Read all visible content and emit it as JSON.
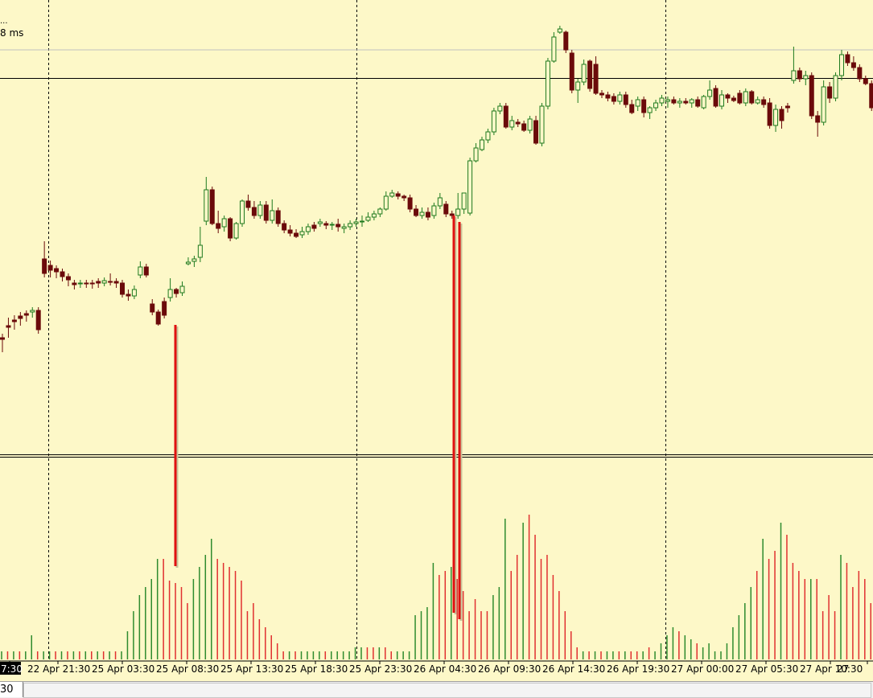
{
  "status": {
    "dots": "...",
    "latency": "8 ms"
  },
  "bottom_bar": {
    "field_value": "30"
  },
  "colors": {
    "background": "#fdf8c8",
    "bull_body": "#fdf8c8",
    "bull_outline": "#1e7a1e",
    "bear_body": "#6b0a0a",
    "bear_outline": "#6b0a0a",
    "volume_up": "#2e8b2e",
    "volume_down": "#e03030",
    "highlight_line": "#e01010",
    "grid": "#000000",
    "horizontal_line": "#000000"
  },
  "chart_data": {
    "type": "candlestick",
    "x_tick_labels": [
      "7:30",
      "22 Apr 21:30",
      "25 Apr 03:30",
      "25 Apr 08:30",
      "25 Apr 13:30",
      "25 Apr 18:30",
      "25 Apr 23:30",
      "26 Apr 04:30",
      "26 Apr 09:30",
      "26 Apr 14:30",
      "26 Apr 19:30",
      "27 Apr 00:00",
      "27 Apr 05:30",
      "27 Apr 10:30",
      "27"
    ],
    "highlighted_tick": "7:30",
    "grid": true,
    "vertical_grid_after_ticks": [
      1,
      6,
      11
    ],
    "price_series": [
      [
        420,
        422,
        438,
        415
      ],
      [
        405,
        407,
        420,
        395
      ],
      [
        398,
        400,
        410,
        392
      ],
      [
        393,
        396,
        405,
        388
      ],
      [
        390,
        392,
        400,
        386
      ],
      [
        388,
        386,
        395,
        382
      ],
      [
        386,
        410,
        415,
        382
      ],
      [
        322,
        340,
        345,
        300
      ],
      [
        330,
        336,
        345,
        324
      ],
      [
        334,
        338,
        346,
        330
      ],
      [
        338,
        344,
        350,
        334
      ],
      [
        344,
        348,
        356,
        340
      ],
      [
        352,
        354,
        360,
        348
      ],
      [
        353,
        352,
        358,
        348
      ],
      [
        352,
        353,
        358,
        348
      ],
      [
        352,
        353,
        359,
        348
      ],
      [
        350,
        352,
        358,
        346
      ],
      [
        352,
        349,
        356,
        345
      ],
      [
        350,
        350,
        355,
        340
      ],
      [
        350,
        352,
        358,
        346
      ],
      [
        352,
        366,
        370,
        348
      ],
      [
        366,
        368,
        374,
        360
      ],
      [
        368,
        360,
        372,
        355
      ],
      [
        342,
        332,
        346,
        325
      ],
      [
        332,
        342,
        345,
        328
      ],
      [
        378,
        388,
        392,
        372
      ],
      [
        388,
        403,
        405,
        385
      ],
      [
        375,
        392,
        396,
        370
      ],
      [
        370,
        360,
        375,
        346
      ],
      [
        360,
        365,
        370,
        358
      ],
      [
        364,
        356,
        368,
        350
      ],
      [
        328,
        326,
        330,
        320
      ],
      [
        325,
        322,
        332,
        318
      ],
      [
        320,
        305,
        326,
        282
      ],
      [
        275,
        236,
        280,
        220
      ],
      [
        236,
        278,
        280,
        232
      ],
      [
        278,
        284,
        290,
        262
      ],
      [
        282,
        272,
        288,
        268
      ],
      [
        272,
        296,
        300,
        270
      ],
      [
        296,
        278,
        298,
        276
      ],
      [
        278,
        250,
        282,
        248
      ],
      [
        250,
        258,
        262,
        242
      ],
      [
        258,
        268,
        272,
        250
      ],
      [
        268,
        255,
        272,
        250
      ],
      [
        255,
        274,
        278,
        250
      ],
      [
        274,
        262,
        278,
        248
      ],
      [
        262,
        278,
        282,
        258
      ],
      [
        278,
        286,
        290,
        274
      ],
      [
        286,
        290,
        294,
        280
      ],
      [
        290,
        294,
        296,
        285
      ],
      [
        292,
        288,
        296,
        282
      ],
      [
        288,
        282,
        292,
        278
      ],
      [
        280,
        284,
        288,
        276
      ],
      [
        278,
        276,
        282,
        272
      ],
      [
        278,
        280,
        285,
        275
      ],
      [
        280,
        279,
        286,
        276
      ],
      [
        279,
        282,
        288,
        272
      ],
      [
        284,
        282,
        290,
        278
      ],
      [
        282,
        278,
        286,
        274
      ],
      [
        278,
        276,
        282,
        272
      ],
      [
        276,
        275,
        282,
        268
      ],
      [
        274,
        270,
        276,
        264
      ],
      [
        270,
        266,
        274,
        262
      ],
      [
        266,
        260,
        270,
        258
      ],
      [
        260,
        244,
        262,
        238
      ],
      [
        244,
        240,
        246,
        236
      ],
      [
        241,
        244,
        248,
        238
      ],
      [
        244,
        246,
        250,
        242
      ],
      [
        246,
        260,
        264,
        242
      ],
      [
        260,
        268,
        270,
        255
      ],
      [
        268,
        264,
        272,
        258
      ],
      [
        264,
        270,
        274,
        258
      ],
      [
        268,
        256,
        272,
        252
      ],
      [
        256,
        246,
        260,
        240
      ],
      [
        254,
        266,
        270,
        250
      ],
      [
        266,
        268,
        272,
        262
      ],
      [
        268,
        260,
        272,
        240
      ],
      [
        260,
        240,
        266,
        240
      ],
      [
        265,
        200,
        268,
        196
      ],
      [
        200,
        184,
        202,
        178
      ],
      [
        186,
        174,
        188,
        170
      ],
      [
        174,
        164,
        178,
        160
      ],
      [
        164,
        138,
        168,
        134
      ],
      [
        138,
        132,
        142,
        128
      ],
      [
        132,
        158,
        160,
        128
      ],
      [
        158,
        150,
        162,
        144
      ],
      [
        152,
        154,
        158,
        148
      ],
      [
        154,
        162,
        164,
        150
      ],
      [
        162,
        148,
        166,
        144
      ],
      [
        150,
        178,
        180,
        144
      ],
      [
        178,
        132,
        182,
        128
      ],
      [
        132,
        76,
        136,
        72
      ],
      [
        76,
        46,
        78,
        40
      ],
      [
        40,
        36,
        42,
        32
      ],
      [
        40,
        62,
        66,
        38
      ],
      [
        66,
        112,
        116,
        62
      ],
      [
        112,
        102,
        128,
        98
      ],
      [
        102,
        80,
        106,
        74
      ],
      [
        76,
        110,
        114,
        74
      ],
      [
        80,
        116,
        118,
        70
      ],
      [
        116,
        118,
        122,
        112
      ],
      [
        118,
        122,
        126,
        114
      ],
      [
        120,
        126,
        130,
        116
      ],
      [
        126,
        118,
        130,
        114
      ],
      [
        118,
        130,
        134,
        114
      ],
      [
        130,
        140,
        142,
        124
      ],
      [
        132,
        124,
        138,
        120
      ],
      [
        124,
        140,
        146,
        120
      ],
      [
        140,
        134,
        148,
        132
      ],
      [
        134,
        128,
        138,
        124
      ],
      [
        128,
        122,
        132,
        118
      ],
      [
        126,
        124,
        134,
        120
      ],
      [
        124,
        128,
        130,
        120
      ],
      [
        128,
        126,
        134,
        122
      ],
      [
        126,
        128,
        130,
        122
      ],
      [
        128,
        124,
        134,
        122
      ],
      [
        124,
        132,
        134,
        120
      ],
      [
        134,
        120,
        136,
        118
      ],
      [
        120,
        112,
        124,
        100
      ],
      [
        110,
        132,
        134,
        106
      ],
      [
        132,
        118,
        136,
        112
      ],
      [
        118,
        122,
        128,
        116
      ],
      [
        122,
        125,
        127,
        119
      ],
      [
        116,
        128,
        130,
        112
      ],
      [
        128,
        114,
        132,
        110
      ],
      [
        114,
        128,
        130,
        112
      ],
      [
        128,
        124,
        130,
        120
      ],
      [
        124,
        130,
        134,
        120
      ],
      [
        128,
        156,
        160,
        122
      ],
      [
        156,
        136,
        164,
        130
      ],
      [
        136,
        150,
        160,
        132
      ],
      [
        132,
        134,
        140,
        128
      ],
      [
        100,
        88,
        104,
        58
      ],
      [
        88,
        98,
        102,
        84
      ],
      [
        98,
        94,
        106,
        88
      ],
      [
        94,
        144,
        148,
        90
      ],
      [
        144,
        152,
        170,
        138
      ],
      [
        152,
        108,
        156,
        100
      ],
      [
        108,
        122,
        128,
        102
      ],
      [
        122,
        94,
        126,
        90
      ],
      [
        94,
        68,
        100,
        62
      ],
      [
        68,
        78,
        82,
        64
      ],
      [
        78,
        84,
        88,
        70
      ],
      [
        84,
        98,
        102,
        80
      ],
      [
        98,
        104,
        106,
        94
      ],
      [
        104,
        134,
        138,
        100
      ],
      [
        134,
        122,
        142,
        116
      ],
      [
        122,
        146,
        150,
        118
      ],
      [
        146,
        136,
        152,
        128
      ],
      [
        136,
        118,
        140,
        114
      ]
    ],
    "volume_series": [
      {
        "v": 10,
        "up": true
      },
      {
        "v": 10,
        "up": false
      },
      {
        "v": 10,
        "up": true
      },
      {
        "v": 10,
        "up": false
      },
      {
        "v": 10,
        "up": true
      },
      {
        "v": 30,
        "up": true
      },
      {
        "v": 10,
        "up": false
      },
      {
        "v": 10,
        "up": true
      },
      {
        "v": 10,
        "up": true
      },
      {
        "v": 10,
        "up": false
      },
      {
        "v": 10,
        "up": true
      },
      {
        "v": 10,
        "up": false
      },
      {
        "v": 10,
        "up": true
      },
      {
        "v": 10,
        "up": false
      },
      {
        "v": 10,
        "up": true
      },
      {
        "v": 10,
        "up": false
      },
      {
        "v": 10,
        "up": true
      },
      {
        "v": 10,
        "up": false
      },
      {
        "v": 10,
        "up": true
      },
      {
        "v": 10,
        "up": false
      },
      {
        "v": 10,
        "up": true
      },
      {
        "v": 35,
        "up": true
      },
      {
        "v": 60,
        "up": true
      },
      {
        "v": 80,
        "up": true
      },
      {
        "v": 90,
        "up": true
      },
      {
        "v": 100,
        "up": true
      },
      {
        "v": 125,
        "up": true
      },
      {
        "v": 125,
        "up": false
      },
      {
        "v": 98,
        "up": false
      },
      {
        "v": 95,
        "up": false
      },
      {
        "v": 90,
        "up": false
      },
      {
        "v": 70,
        "up": false
      },
      {
        "v": 100,
        "up": true
      },
      {
        "v": 115,
        "up": true
      },
      {
        "v": 130,
        "up": true
      },
      {
        "v": 150,
        "up": true
      },
      {
        "v": 125,
        "up": false
      },
      {
        "v": 120,
        "up": false
      },
      {
        "v": 115,
        "up": false
      },
      {
        "v": 110,
        "up": false
      },
      {
        "v": 98,
        "up": false
      },
      {
        "v": 60,
        "up": false
      },
      {
        "v": 70,
        "up": false
      },
      {
        "v": 50,
        "up": false
      },
      {
        "v": 40,
        "up": false
      },
      {
        "v": 30,
        "up": false
      },
      {
        "v": 20,
        "up": false
      },
      {
        "v": 10,
        "up": false
      },
      {
        "v": 10,
        "up": true
      },
      {
        "v": 10,
        "up": false
      },
      {
        "v": 10,
        "up": true
      },
      {
        "v": 10,
        "up": true
      },
      {
        "v": 10,
        "up": true
      },
      {
        "v": 10,
        "up": true
      },
      {
        "v": 10,
        "up": false
      },
      {
        "v": 10,
        "up": true
      },
      {
        "v": 10,
        "up": true
      },
      {
        "v": 10,
        "up": true
      },
      {
        "v": 10,
        "up": true
      },
      {
        "v": 15,
        "up": true
      },
      {
        "v": 15,
        "up": true
      },
      {
        "v": 15,
        "up": false
      },
      {
        "v": 15,
        "up": false
      },
      {
        "v": 15,
        "up": true
      },
      {
        "v": 15,
        "up": false
      },
      {
        "v": 10,
        "up": false
      },
      {
        "v": 10,
        "up": true
      },
      {
        "v": 10,
        "up": true
      },
      {
        "v": 10,
        "up": true
      },
      {
        "v": 55,
        "up": true
      },
      {
        "v": 60,
        "up": true
      },
      {
        "v": 65,
        "up": true
      },
      {
        "v": 120,
        "up": true
      },
      {
        "v": 105,
        "up": false
      },
      {
        "v": 110,
        "up": false
      },
      {
        "v": 115,
        "up": true
      },
      {
        "v": 100,
        "up": false
      },
      {
        "v": 85,
        "up": false
      },
      {
        "v": 60,
        "up": false
      },
      {
        "v": 75,
        "up": false
      },
      {
        "v": 60,
        "up": false
      },
      {
        "v": 60,
        "up": false
      },
      {
        "v": 80,
        "up": true
      },
      {
        "v": 90,
        "up": true
      },
      {
        "v": 175,
        "up": true
      },
      {
        "v": 110,
        "up": false
      },
      {
        "v": 130,
        "up": false
      },
      {
        "v": 170,
        "up": true
      },
      {
        "v": 180,
        "up": false
      },
      {
        "v": 155,
        "up": false
      },
      {
        "v": 125,
        "up": false
      },
      {
        "v": 130,
        "up": false
      },
      {
        "v": 105,
        "up": false
      },
      {
        "v": 85,
        "up": false
      },
      {
        "v": 60,
        "up": false
      },
      {
        "v": 35,
        "up": false
      },
      {
        "v": 15,
        "up": false
      },
      {
        "v": 10,
        "up": true
      },
      {
        "v": 10,
        "up": false
      },
      {
        "v": 10,
        "up": true
      },
      {
        "v": 10,
        "up": false
      },
      {
        "v": 10,
        "up": true
      },
      {
        "v": 10,
        "up": true
      },
      {
        "v": 10,
        "up": false
      },
      {
        "v": 10,
        "up": true
      },
      {
        "v": 10,
        "up": false
      },
      {
        "v": 10,
        "up": false
      },
      {
        "v": 10,
        "up": true
      },
      {
        "v": 15,
        "up": false
      },
      {
        "v": 10,
        "up": true
      },
      {
        "v": 20,
        "up": true
      },
      {
        "v": 30,
        "up": true
      },
      {
        "v": 40,
        "up": true
      },
      {
        "v": 35,
        "up": false
      },
      {
        "v": 30,
        "up": true
      },
      {
        "v": 25,
        "up": true
      },
      {
        "v": 20,
        "up": false
      },
      {
        "v": 15,
        "up": true
      },
      {
        "v": 20,
        "up": true
      },
      {
        "v": 10,
        "up": true
      },
      {
        "v": 10,
        "up": true
      },
      {
        "v": 20,
        "up": true
      },
      {
        "v": 40,
        "up": true
      },
      {
        "v": 55,
        "up": true
      },
      {
        "v": 70,
        "up": true
      },
      {
        "v": 90,
        "up": true
      },
      {
        "v": 110,
        "up": false
      },
      {
        "v": 150,
        "up": true
      },
      {
        "v": 125,
        "up": false
      },
      {
        "v": 135,
        "up": false
      },
      {
        "v": 170,
        "up": true
      },
      {
        "v": 155,
        "up": false
      },
      {
        "v": 120,
        "up": false
      },
      {
        "v": 110,
        "up": false
      },
      {
        "v": 100,
        "up": false
      },
      {
        "v": 100,
        "up": true
      },
      {
        "v": 100,
        "up": false
      },
      {
        "v": 60,
        "up": false
      },
      {
        "v": 80,
        "up": false
      },
      {
        "v": 60,
        "up": false
      },
      {
        "v": 130,
        "up": true
      },
      {
        "v": 120,
        "up": false
      },
      {
        "v": 90,
        "up": false
      },
      {
        "v": 110,
        "up": false
      },
      {
        "v": 100,
        "up": false
      },
      {
        "v": 70,
        "up": false
      },
      {
        "v": 50,
        "up": false
      },
      {
        "v": 60,
        "up": true
      }
    ],
    "highlight_markers": [
      {
        "bar_index": 29
      },
      {
        "bar_index": 69
      },
      {
        "bar_index": 70
      }
    ]
  }
}
